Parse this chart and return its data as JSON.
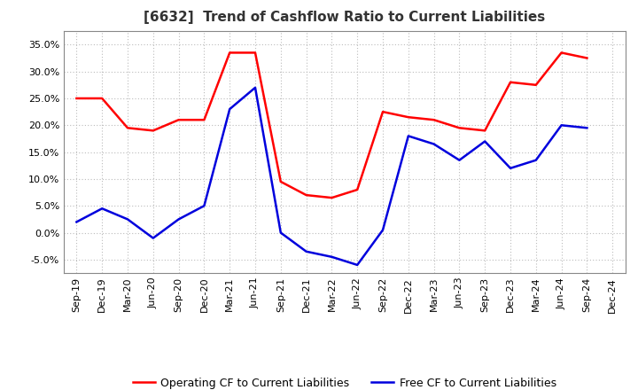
{
  "title": "[6632]  Trend of Cashflow Ratio to Current Liabilities",
  "x_labels": [
    "Sep-19",
    "Dec-19",
    "Mar-20",
    "Jun-20",
    "Sep-20",
    "Dec-20",
    "Mar-21",
    "Jun-21",
    "Sep-21",
    "Dec-21",
    "Mar-22",
    "Jun-22",
    "Sep-22",
    "Dec-22",
    "Mar-23",
    "Jun-23",
    "Sep-23",
    "Dec-23",
    "Mar-24",
    "Jun-24",
    "Sep-24",
    "Dec-24"
  ],
  "operating_cf": [
    25.0,
    25.0,
    19.5,
    19.0,
    21.0,
    21.0,
    33.5,
    33.5,
    9.5,
    7.0,
    6.5,
    8.0,
    22.5,
    21.5,
    21.0,
    19.5,
    19.0,
    28.0,
    27.5,
    33.5,
    32.5,
    null
  ],
  "free_cf": [
    2.0,
    4.5,
    2.5,
    -1.0,
    2.5,
    5.0,
    23.0,
    27.0,
    0.0,
    -3.5,
    -4.5,
    -6.0,
    0.5,
    18.0,
    16.5,
    13.5,
    17.0,
    12.0,
    13.5,
    20.0,
    19.5,
    null
  ],
  "operating_color": "#FF0000",
  "free_color": "#0000DD",
  "ylim": [
    -7.5,
    37.5
  ],
  "yticks": [
    -5.0,
    0.0,
    5.0,
    10.0,
    15.0,
    20.0,
    25.0,
    30.0,
    35.0
  ],
  "ytick_labels": [
    "-5.0%",
    "0.0%",
    "5.0%",
    "10.0%",
    "15.0%",
    "20.0%",
    "25.0%",
    "30.0%",
    "35.0%"
  ],
  "background_color": "#FFFFFF",
  "plot_bg_color": "#FFFFFF",
  "grid_color": "#BBBBBB",
  "legend_operating": "Operating CF to Current Liabilities",
  "legend_free": "Free CF to Current Liabilities",
  "title_fontsize": 11,
  "tick_fontsize": 8,
  "legend_fontsize": 9,
  "linewidth": 1.8
}
